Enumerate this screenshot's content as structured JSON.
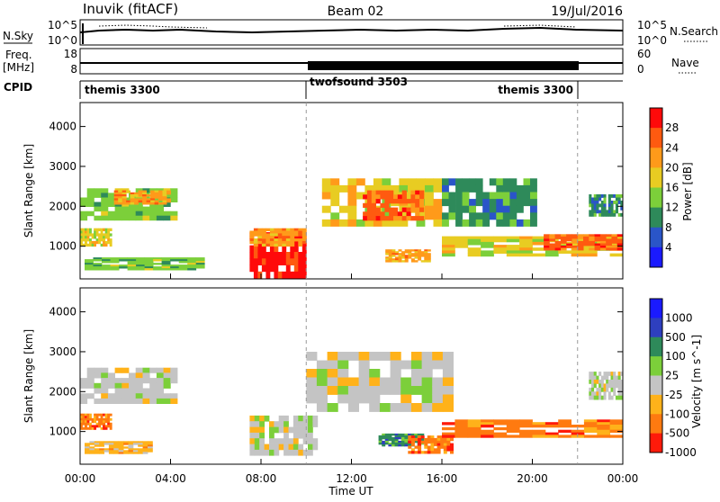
{
  "header": {
    "station": "Inuvik (fitACF)",
    "beam": "Beam 02",
    "date": "19/Jul/2016"
  },
  "chart_data": [
    {
      "type": "line",
      "panel": "noise",
      "left_label": "N.Sky",
      "left_ticks": [
        "10^5",
        "10^0"
      ],
      "right_label": "N.Search",
      "right_ticks": [
        "10^5",
        "10^0"
      ]
    },
    {
      "type": "line",
      "panel": "frequency",
      "left_label_top": "Freq.",
      "left_label_bottom": "[MHz]",
      "left_ticks": [
        18,
        8
      ],
      "right_label": "Nave",
      "right_ticks": [
        60,
        0
      ]
    },
    {
      "type": "table",
      "panel": "cpid",
      "label": "CPID",
      "segments": [
        {
          "name": "themis 3300",
          "start": 0,
          "end": 10
        },
        {
          "name": "twofsound 3503",
          "start": 10,
          "end": 22
        },
        {
          "name": "themis 3300",
          "start": 22,
          "end": 24
        }
      ]
    },
    {
      "type": "heatmap",
      "panel": "power",
      "ylabel": "Slant Range [km]",
      "ylim": [
        180,
        4600
      ],
      "yticks": [
        1000,
        2000,
        3000,
        4000
      ],
      "colorbar_label": "Power [dB]",
      "colorbar_ticks": [
        4,
        8,
        12,
        16,
        20,
        24,
        28
      ],
      "colors": [
        "#1a1aff",
        "#2a55c8",
        "#2e8a5a",
        "#7ccf3a",
        "#e8cc22",
        "#ff9a1a",
        "#ff5a10",
        "#ff0a0a"
      ],
      "regions": [
        {
          "x": [
            0.0,
            4.3
          ],
          "y": [
            1650,
            2450
          ],
          "level": 3
        },
        {
          "x": [
            0.0,
            1.4
          ],
          "y": [
            1000,
            1450
          ],
          "level": 4
        },
        {
          "x": [
            0.2,
            5.5
          ],
          "y": [
            420,
            720
          ],
          "level": 3
        },
        {
          "x": [
            1.5,
            4.0
          ],
          "y": [
            2050,
            2400
          ],
          "level": 5
        },
        {
          "x": [
            7.5,
            10.0
          ],
          "y": [
            200,
            1350
          ],
          "level": 7
        },
        {
          "x": [
            7.5,
            10.0
          ],
          "y": [
            1000,
            1450
          ],
          "level": 5
        },
        {
          "x": [
            10.7,
            16.0
          ],
          "y": [
            1500,
            2700
          ],
          "level": 4
        },
        {
          "x": [
            12.5,
            15.2
          ],
          "y": [
            1650,
            2400
          ],
          "level": 6
        },
        {
          "x": [
            13.5,
            15.5
          ],
          "y": [
            620,
            920
          ],
          "level": 5
        },
        {
          "x": [
            16.0,
            20.2
          ],
          "y": [
            1500,
            2700
          ],
          "level": 2
        },
        {
          "x": [
            16.0,
            24.0
          ],
          "y": [
            750,
            1250
          ],
          "level": 4
        },
        {
          "x": [
            20.5,
            24.0
          ],
          "y": [
            900,
            1300
          ],
          "level": 6
        },
        {
          "x": [
            22.5,
            24.0
          ],
          "y": [
            1750,
            2300
          ],
          "level": 2
        }
      ]
    },
    {
      "type": "heatmap",
      "panel": "velocity",
      "ylabel": "Slant Range [km]",
      "ylim": [
        180,
        4600
      ],
      "yticks": [
        1000,
        2000,
        3000,
        4000
      ],
      "xlabel": "Time UT",
      "xlim": [
        0,
        24
      ],
      "xticks": [
        "00:00",
        "04:00",
        "08:00",
        "12:00",
        "16:00",
        "20:00",
        "00:00"
      ],
      "colorbar_label": "Velocity [m s^-1]",
      "colorbar_ticks": [
        "1000",
        "500",
        "100",
        "25",
        "-25",
        "-100",
        "-500",
        "-1000"
      ],
      "colors": [
        "#1a1aff",
        "#2e3fbf",
        "#2e8a5a",
        "#7ccf3a",
        "#c4c4c4",
        "#ffb21a",
        "#ff7a10",
        "#ff1a0a"
      ],
      "regions": [
        {
          "x": [
            0.0,
            4.3
          ],
          "y": [
            1700,
            2600
          ],
          "level": 4
        },
        {
          "x": [
            0.0,
            1.4
          ],
          "y": [
            1050,
            1450
          ],
          "level": 6
        },
        {
          "x": [
            0.2,
            3.2
          ],
          "y": [
            480,
            760
          ],
          "level": 5
        },
        {
          "x": [
            7.5,
            10.5
          ],
          "y": [
            400,
            1400
          ],
          "level": 4
        },
        {
          "x": [
            10.0,
            16.5
          ],
          "y": [
            1500,
            3000
          ],
          "level": 4
        },
        {
          "x": [
            13.2,
            15.2
          ],
          "y": [
            650,
            950
          ],
          "level": 2
        },
        {
          "x": [
            14.5,
            16.5
          ],
          "y": [
            450,
            900
          ],
          "level": 6
        },
        {
          "x": [
            16.0,
            24.0
          ],
          "y": [
            850,
            1300
          ],
          "level": 6
        },
        {
          "x": [
            22.5,
            24.0
          ],
          "y": [
            1800,
            2500
          ],
          "level": 4
        }
      ]
    }
  ]
}
